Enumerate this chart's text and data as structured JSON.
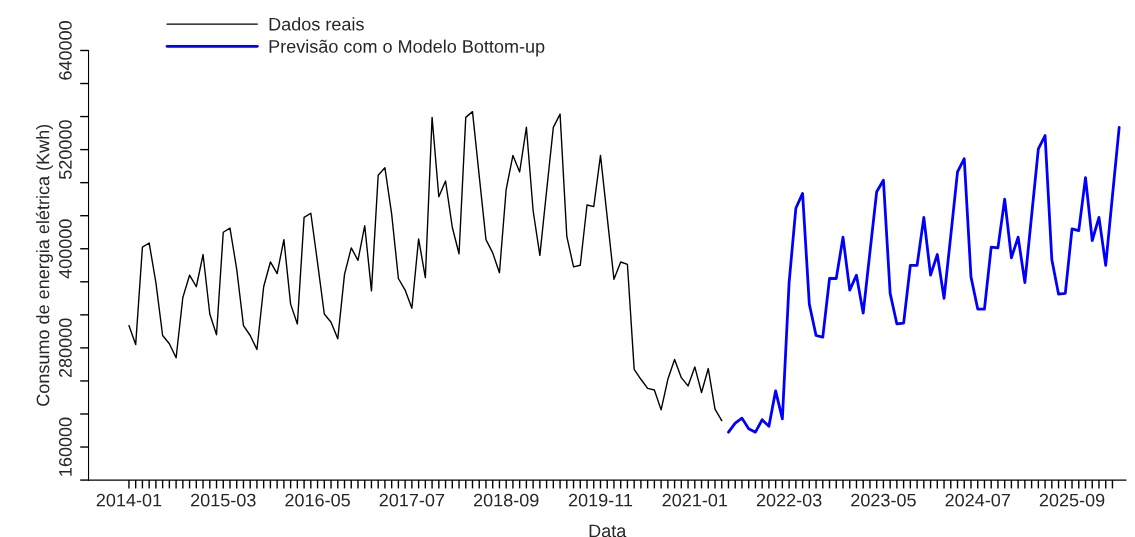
{
  "chart_data": {
    "type": "line",
    "xlabel": "Data",
    "ylabel": "Consumo de energia elétrica (Kwh)",
    "xlim": [
      "2013-07",
      "2026-05"
    ],
    "ylim": [
      120000,
      640000
    ],
    "yticks": [
      {
        "value": 120000,
        "label": null
      },
      160000,
      {
        "value": 200000,
        "label": null
      },
      {
        "value": 240000,
        "label": null
      },
      280000,
      {
        "value": 320000,
        "label": null
      },
      {
        "value": 360000,
        "label": null
      },
      400000,
      {
        "value": 440000,
        "label": null
      },
      {
        "value": 480000,
        "label": null
      },
      520000,
      {
        "value": 560000,
        "label": null
      },
      {
        "value": 600000,
        "label": null
      },
      640000
    ],
    "xticks": [
      "2014-01",
      {
        "value": "2014-02",
        "label": null
      },
      {
        "value": "2014-03",
        "label": null
      },
      {
        "value": "2014-04",
        "label": null
      },
      {
        "value": "2014-05",
        "label": null
      },
      {
        "value": "2014-06",
        "label": null
      },
      {
        "value": "2014-07",
        "label": null
      },
      {
        "value": "2014-08",
        "label": null
      },
      {
        "value": "2014-09",
        "label": null
      },
      {
        "value": "2014-10",
        "label": null
      },
      {
        "value": "2014-11",
        "label": null
      },
      {
        "value": "2014-12",
        "label": null
      },
      {
        "value": "2015-01",
        "label": null
      },
      {
        "value": "2015-02",
        "label": null
      },
      "2015-03",
      {
        "value": "2015-04",
        "label": null
      },
      {
        "value": "2015-05",
        "label": null
      },
      {
        "value": "2015-06",
        "label": null
      },
      {
        "value": "2015-07",
        "label": null
      },
      {
        "value": "2015-08",
        "label": null
      },
      {
        "value": "2015-09",
        "label": null
      },
      {
        "value": "2015-10",
        "label": null
      },
      {
        "value": "2015-11",
        "label": null
      },
      {
        "value": "2015-12",
        "label": null
      },
      {
        "value": "2016-01",
        "label": null
      },
      {
        "value": "2016-02",
        "label": null
      },
      {
        "value": "2016-03",
        "label": null
      },
      {
        "value": "2016-04",
        "label": null
      },
      "2016-05",
      {
        "value": "2016-06",
        "label": null
      },
      {
        "value": "2016-07",
        "label": null
      },
      {
        "value": "2016-08",
        "label": null
      },
      {
        "value": "2016-09",
        "label": null
      },
      {
        "value": "2016-10",
        "label": null
      },
      {
        "value": "2016-11",
        "label": null
      },
      {
        "value": "2016-12",
        "label": null
      },
      {
        "value": "2017-01",
        "label": null
      },
      {
        "value": "2017-02",
        "label": null
      },
      {
        "value": "2017-03",
        "label": null
      },
      {
        "value": "2017-04",
        "label": null
      },
      {
        "value": "2017-05",
        "label": null
      },
      {
        "value": "2017-06",
        "label": null
      },
      "2017-07",
      {
        "value": "2017-08",
        "label": null
      },
      {
        "value": "2017-09",
        "label": null
      },
      {
        "value": "2017-10",
        "label": null
      },
      {
        "value": "2017-11",
        "label": null
      },
      {
        "value": "2017-12",
        "label": null
      },
      {
        "value": "2018-01",
        "label": null
      },
      {
        "value": "2018-02",
        "label": null
      },
      {
        "value": "2018-03",
        "label": null
      },
      {
        "value": "2018-04",
        "label": null
      },
      {
        "value": "2018-05",
        "label": null
      },
      {
        "value": "2018-06",
        "label": null
      },
      {
        "value": "2018-07",
        "label": null
      },
      {
        "value": "2018-08",
        "label": null
      },
      "2018-09",
      {
        "value": "2018-10",
        "label": null
      },
      {
        "value": "2018-11",
        "label": null
      },
      {
        "value": "2018-12",
        "label": null
      },
      {
        "value": "2019-01",
        "label": null
      },
      {
        "value": "2019-02",
        "label": null
      },
      {
        "value": "2019-03",
        "label": null
      },
      {
        "value": "2019-04",
        "label": null
      },
      {
        "value": "2019-05",
        "label": null
      },
      {
        "value": "2019-06",
        "label": null
      },
      {
        "value": "2019-07",
        "label": null
      },
      {
        "value": "2019-08",
        "label": null
      },
      {
        "value": "2019-09",
        "label": null
      },
      {
        "value": "2019-10",
        "label": null
      },
      "2019-11",
      {
        "value": "2019-12",
        "label": null
      },
      {
        "value": "2020-01",
        "label": null
      },
      {
        "value": "2020-02",
        "label": null
      },
      {
        "value": "2020-03",
        "label": null
      },
      {
        "value": "2020-04",
        "label": null
      },
      {
        "value": "2020-05",
        "label": null
      },
      {
        "value": "2020-06",
        "label": null
      },
      {
        "value": "2020-07",
        "label": null
      },
      {
        "value": "2020-08",
        "label": null
      },
      {
        "value": "2020-09",
        "label": null
      },
      {
        "value": "2020-10",
        "label": null
      },
      {
        "value": "2020-11",
        "label": null
      },
      {
        "value": "2020-12",
        "label": null
      },
      "2021-01",
      {
        "value": "2021-02",
        "label": null
      },
      {
        "value": "2021-03",
        "label": null
      },
      {
        "value": "2021-04",
        "label": null
      },
      {
        "value": "2021-05",
        "label": null
      },
      {
        "value": "2021-06",
        "label": null
      },
      {
        "value": "2021-07",
        "label": null
      },
      {
        "value": "2021-08",
        "label": null
      },
      {
        "value": "2021-09",
        "label": null
      },
      {
        "value": "2021-10",
        "label": null
      },
      {
        "value": "2021-11",
        "label": null
      },
      {
        "value": "2021-12",
        "label": null
      },
      {
        "value": "2022-01",
        "label": null
      },
      {
        "value": "2022-02",
        "label": null
      },
      "2022-03",
      {
        "value": "2022-04",
        "label": null
      },
      {
        "value": "2022-05",
        "label": null
      },
      {
        "value": "2022-06",
        "label": null
      },
      {
        "value": "2022-07",
        "label": null
      },
      {
        "value": "2022-08",
        "label": null
      },
      {
        "value": "2022-09",
        "label": null
      },
      {
        "value": "2022-10",
        "label": null
      },
      {
        "value": "2022-11",
        "label": null
      },
      {
        "value": "2022-12",
        "label": null
      },
      {
        "value": "2023-01",
        "label": null
      },
      {
        "value": "2023-02",
        "label": null
      },
      {
        "value": "2023-03",
        "label": null
      },
      {
        "value": "2023-04",
        "label": null
      },
      "2023-05",
      {
        "value": "2023-06",
        "label": null
      },
      {
        "value": "2023-07",
        "label": null
      },
      {
        "value": "2023-08",
        "label": null
      },
      {
        "value": "2023-09",
        "label": null
      },
      {
        "value": "2023-10",
        "label": null
      },
      {
        "value": "2023-11",
        "label": null
      },
      {
        "value": "2023-12",
        "label": null
      },
      {
        "value": "2024-01",
        "label": null
      },
      {
        "value": "2024-02",
        "label": null
      },
      {
        "value": "2024-03",
        "label": null
      },
      {
        "value": "2024-04",
        "label": null
      },
      {
        "value": "2024-05",
        "label": null
      },
      {
        "value": "2024-06",
        "label": null
      },
      "2024-07",
      {
        "value": "2024-08",
        "label": null
      },
      {
        "value": "2024-09",
        "label": null
      },
      {
        "value": "2024-10",
        "label": null
      },
      {
        "value": "2024-11",
        "label": null
      },
      {
        "value": "2024-12",
        "label": null
      },
      {
        "value": "2025-01",
        "label": null
      },
      {
        "value": "2025-02",
        "label": null
      },
      {
        "value": "2025-03",
        "label": null
      },
      {
        "value": "2025-04",
        "label": null
      },
      {
        "value": "2025-05",
        "label": null
      },
      {
        "value": "2025-06",
        "label": null
      },
      {
        "value": "2025-07",
        "label": null
      },
      {
        "value": "2025-08",
        "label": null
      },
      "2025-09",
      {
        "value": "2025-10",
        "label": null
      },
      {
        "value": "2025-11",
        "label": null
      },
      {
        "value": "2025-12",
        "label": null
      },
      {
        "value": "2026-01",
        "label": null
      },
      {
        "value": "2026-02",
        "label": null
      },
      {
        "value": "2026-03",
        "label": null
      }
    ],
    "grid": false,
    "legend": "top left",
    "marker": "none",
    "line_style": "solid",
    "series": [
      {
        "name": "Dados reais",
        "color": "#000000",
        "x": [
          "2014-01",
          "2014-02",
          "2014-03",
          "2014-04",
          "2014-05",
          "2014-06",
          "2014-07",
          "2014-08",
          "2014-09",
          "2014-10",
          "2014-11",
          "2014-12",
          "2015-01",
          "2015-02",
          "2015-03",
          "2015-04",
          "2015-05",
          "2015-06",
          "2015-07",
          "2015-08",
          "2015-09",
          "2015-10",
          "2015-11",
          "2015-12",
          "2016-01",
          "2016-02",
          "2016-03",
          "2016-04",
          "2016-05",
          "2016-06",
          "2016-07",
          "2016-08",
          "2016-09",
          "2016-10",
          "2016-11",
          "2016-12",
          "2017-01",
          "2017-02",
          "2017-03",
          "2017-04",
          "2017-05",
          "2017-06",
          "2017-07",
          "2017-08",
          "2017-09",
          "2017-10",
          "2017-11",
          "2017-12",
          "2018-01",
          "2018-02",
          "2018-03",
          "2018-04",
          "2018-05",
          "2018-06",
          "2018-07",
          "2018-08",
          "2018-09",
          "2018-10",
          "2018-11",
          "2018-12",
          "2019-01",
          "2019-02",
          "2019-03",
          "2019-04",
          "2019-05",
          "2019-06",
          "2019-07",
          "2019-08",
          "2019-09",
          "2019-10",
          "2019-11",
          "2019-12",
          "2020-01",
          "2020-02",
          "2020-03",
          "2020-04",
          "2020-05",
          "2020-06",
          "2020-07",
          "2020-08",
          "2020-09",
          "2020-10",
          "2020-11",
          "2020-12",
          "2021-01",
          "2021-02",
          "2021-03",
          "2021-04",
          "2021-05"
        ],
        "values": [
          307000,
          284000,
          402000,
          407000,
          359000,
          295000,
          285000,
          268000,
          341000,
          368000,
          354000,
          393000,
          321000,
          296000,
          420000,
          425000,
          375000,
          307000,
          295000,
          278000,
          354000,
          384000,
          370000,
          411000,
          333000,
          309000,
          438000,
          443000,
          383000,
          321000,
          311000,
          291000,
          369000,
          401000,
          386000,
          428000,
          349000,
          489000,
          498000,
          442000,
          364000,
          350000,
          328000,
          412000,
          365000,
          559000,
          463000,
          482000,
          426000,
          394000,
          559000,
          566000,
          488000,
          411000,
          395000,
          371000,
          472000,
          513000,
          493000,
          547000,
          446000,
          392000,
          470000,
          547000,
          563000,
          415000,
          378000,
          380000,
          453000,
          451000,
          513000,
          438000,
          363000,
          384000,
          381000,
          254000,
          242000,
          231000,
          229000,
          205000,
          242000,
          266000,
          244000,
          234000,
          257000,
          226000,
          255000,
          206000,
          192000
        ]
      },
      {
        "name": "Previsão com o Modelo Bottom-up",
        "color": "#0000ff",
        "x": [
          "2021-06",
          "2021-07",
          "2021-08",
          "2021-09",
          "2021-10",
          "2021-11",
          "2021-12",
          "2022-01",
          "2022-02",
          "2022-03",
          "2022-04",
          "2022-05",
          "2022-06",
          "2022-07",
          "2022-08",
          "2022-09",
          "2022-10",
          "2022-11",
          "2022-12",
          "2023-01",
          "2023-02",
          "2023-03",
          "2023-04",
          "2023-05",
          "2023-06",
          "2023-07",
          "2023-08",
          "2023-09",
          "2023-10",
          "2023-11",
          "2023-12",
          "2024-01",
          "2024-02",
          "2024-03",
          "2024-04",
          "2024-05",
          "2024-06",
          "2024-07",
          "2024-08",
          "2024-09",
          "2024-10",
          "2024-11",
          "2024-12",
          "2025-01",
          "2025-02",
          "2025-03",
          "2025-04",
          "2025-05",
          "2025-06",
          "2025-07",
          "2025-08",
          "2025-09",
          "2025-10",
          "2025-11",
          "2025-12",
          "2026-01",
          "2026-02",
          "2026-03",
          "2026-04"
        ],
        "values": [
          178000,
          189000,
          195000,
          182000,
          178000,
          193000,
          185000,
          228000,
          194000,
          359000,
          449000,
          467000,
          333000,
          295000,
          293000,
          364000,
          364000,
          414000,
          350000,
          368000,
          322000,
          396000,
          469000,
          483000,
          346000,
          309000,
          310000,
          380000,
          380000,
          438000,
          368000,
          393000,
          340000,
          416000,
          493000,
          509000,
          366000,
          327000,
          327000,
          402000,
          401000,
          460000,
          389000,
          414000,
          359000,
          440000,
          521000,
          537000,
          387000,
          345000,
          346000,
          424000,
          422000,
          486000,
          410000,
          438000,
          380000,
          464000,
          547000
        ]
      }
    ]
  }
}
